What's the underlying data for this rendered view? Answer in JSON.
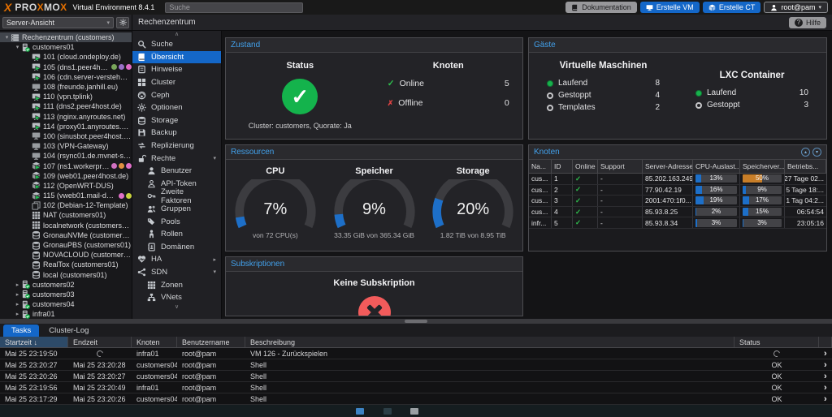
{
  "topbar": {
    "brand_pre": "PRO",
    "brand_mid": "MO",
    "brand_x": "X",
    "subtitle": "Virtual Environment 8.4.1",
    "search_placeholder": "Suche",
    "documentation": "Dokumentation",
    "create_vm": "Erstelle VM",
    "create_ct": "Erstelle CT",
    "user": "root@pam"
  },
  "viewbar": {
    "view_select": "Server-Ansicht",
    "breadcrumb": "Rechenzentrum",
    "help": "Hilfe"
  },
  "tree": {
    "items": [
      {
        "label": "Rechenzentrum (customers)",
        "icon": "datacenter",
        "level": 0,
        "caret": "down",
        "selected": true
      },
      {
        "label": "customers01",
        "icon": "node",
        "level": 1,
        "caret": "down"
      },
      {
        "label": "101 (cloud.ondeploy.de)",
        "icon": "vm-running",
        "level": 2
      },
      {
        "label": "105 (dns1.peer4host.de)",
        "icon": "vm-running",
        "level": 2,
        "tags": [
          "#79a65b",
          "#9a70c8",
          "#e06cc8"
        ]
      },
      {
        "label": "106 (cdn.server-verstehen.de)",
        "icon": "vm-running",
        "level": 2
      },
      {
        "label": "108 (freunde.janhill.eu)",
        "icon": "vm-stopped",
        "level": 2
      },
      {
        "label": "110 (vpn.tplink)",
        "icon": "vm-running",
        "level": 2
      },
      {
        "label": "111 (dns2.peer4host.de)",
        "icon": "vm-running",
        "level": 2
      },
      {
        "label": "113 (nginx.anyroutes.net)",
        "icon": "vm-running",
        "level": 2
      },
      {
        "label": "114 (proxy01.anyroutes.net)",
        "icon": "vm-running",
        "level": 2
      },
      {
        "label": "100 (sinusbot.peer4host.de)",
        "icon": "vm-stopped",
        "level": 2
      },
      {
        "label": "103 (VPN-Gateway)",
        "icon": "vm-stopped",
        "level": 2
      },
      {
        "label": "104 (rsync01.de.mvnet-sol.de)",
        "icon": "vm-stopped",
        "level": 2
      },
      {
        "label": "107 (ns1.workerproxy.net)",
        "icon": "ct-running",
        "level": 2,
        "tags": [
          "#d070c0",
          "#e09040",
          "#e070c8"
        ]
      },
      {
        "label": "109 (web01.peer4host.de)",
        "icon": "ct-running",
        "level": 2
      },
      {
        "label": "112 (OpenWRT-DUS)",
        "icon": "ct-running",
        "level": 2
      },
      {
        "label": "115 (vweb01.mail-deutschland.net)",
        "icon": "ct-running",
        "level": 2,
        "tags": [
          "#e070c8",
          "#c8d23e"
        ]
      },
      {
        "label": "102 (Debian-12-Template)",
        "icon": "template",
        "level": 2
      },
      {
        "label": "NAT (customers01)",
        "icon": "sdn",
        "level": 2
      },
      {
        "label": "localnetwork (customers01)",
        "icon": "sdn",
        "level": 2
      },
      {
        "label": "GronauNVMe (customers01)",
        "icon": "storage",
        "level": 2
      },
      {
        "label": "GronauPBS (customers01)",
        "icon": "storage",
        "level": 2
      },
      {
        "label": "NOVACLOUD (customers01)",
        "icon": "storage",
        "level": 2
      },
      {
        "label": "RealTox (customers01)",
        "icon": "storage",
        "level": 2
      },
      {
        "label": "local (customers01)",
        "icon": "storage",
        "level": 2
      },
      {
        "label": "customers02",
        "icon": "node",
        "level": 1,
        "caret": "right"
      },
      {
        "label": "customers03",
        "icon": "node",
        "level": 1,
        "caret": "right"
      },
      {
        "label": "customers04",
        "icon": "node",
        "level": 1,
        "caret": "right"
      },
      {
        "label": "infra01",
        "icon": "node",
        "level": 1,
        "caret": "right"
      }
    ]
  },
  "nav": {
    "items": [
      {
        "label": "Suche",
        "icon": "magnifier"
      },
      {
        "label": "Übersicht",
        "icon": "book",
        "selected": true
      },
      {
        "label": "Hinweise",
        "icon": "note"
      },
      {
        "label": "Cluster",
        "icon": "cluster"
      },
      {
        "label": "Ceph",
        "icon": "ceph"
      },
      {
        "label": "Optionen",
        "icon": "gear"
      },
      {
        "label": "Storage",
        "icon": "database"
      },
      {
        "label": "Backup",
        "icon": "floppy"
      },
      {
        "label": "Replizierung",
        "icon": "sync"
      },
      {
        "label": "Rechte",
        "icon": "unlock",
        "caret": "down"
      },
      {
        "label": "Benutzer",
        "icon": "user",
        "indent": true
      },
      {
        "label": "API-Token",
        "icon": "user-outline",
        "indent": true
      },
      {
        "label": "Zweite Faktoren",
        "icon": "key",
        "indent": true
      },
      {
        "label": "Gruppen",
        "icon": "users",
        "indent": true
      },
      {
        "label": "Pools",
        "icon": "tags",
        "indent": true
      },
      {
        "label": "Rollen",
        "icon": "person",
        "indent": true
      },
      {
        "label": "Domänen",
        "icon": "address-book",
        "indent": true
      },
      {
        "label": "HA",
        "icon": "heartbeat",
        "caret": "right"
      },
      {
        "label": "SDN",
        "icon": "share-nodes",
        "caret": "down"
      },
      {
        "label": "Zonen",
        "icon": "grid",
        "indent": true
      },
      {
        "label": "VNets",
        "icon": "vnet",
        "indent": true
      }
    ]
  },
  "panels": {
    "zustand": {
      "title": "Zustand",
      "status_label": "Status",
      "cluster_info": "Cluster: customers, Quorate: Ja",
      "nodes_label": "Knoten",
      "online_label": "Online",
      "online_value": "5",
      "offline_label": "Offline",
      "offline_value": "0"
    },
    "gaeste": {
      "title": "Gäste",
      "vm_title": "Virtuelle Maschinen",
      "vm_rows": [
        {
          "icon": "running",
          "label": "Laufend",
          "value": "8"
        },
        {
          "icon": "stopped",
          "label": "Gestoppt",
          "value": "4"
        },
        {
          "icon": "template",
          "label": "Templates",
          "value": "2"
        }
      ],
      "lxc_title": "LXC Container",
      "lxc_rows": [
        {
          "icon": "running",
          "label": "Laufend",
          "value": "10"
        },
        {
          "icon": "stopped",
          "label": "Gestoppt",
          "value": "3"
        }
      ]
    },
    "ressourcen": {
      "title": "Ressourcen",
      "gauges": [
        {
          "label": "CPU",
          "percent": 7,
          "display": "7%",
          "sub": "von 72 CPU(s)"
        },
        {
          "label": "Speicher",
          "percent": 9,
          "display": "9%",
          "sub": "33.35 GiB von 365.34 GiB"
        },
        {
          "label": "Storage",
          "percent": 20,
          "display": "20%",
          "sub": "1.82 TiB von 8.95 TiB"
        }
      ],
      "accent_color": "#1d6fc8"
    },
    "knoten": {
      "title": "Knoten",
      "columns": [
        "Na...",
        "ID",
        "Online",
        "Support",
        "Server-Adresse",
        "CPU-Auslast...",
        "Speicherver...",
        "Betriebs..."
      ],
      "rows": [
        {
          "name": "cus...",
          "id": "1",
          "online": true,
          "support": "-",
          "address": "85.202.163.249",
          "cpu": 13,
          "cpu_display": "13%",
          "mem": 50,
          "mem_display": "50%",
          "mem_warn": true,
          "uptime": "27 Tage 02..."
        },
        {
          "name": "cus...",
          "id": "2",
          "online": true,
          "support": "-",
          "address": "77.90.42.19",
          "cpu": 16,
          "cpu_display": "16%",
          "mem": 9,
          "mem_display": "9%",
          "uptime": "5 Tage 18:..."
        },
        {
          "name": "cus...",
          "id": "3",
          "online": true,
          "support": "-",
          "address": "2001:470:1f0...",
          "cpu": 19,
          "cpu_display": "19%",
          "mem": 17,
          "mem_display": "17%",
          "uptime": "1 Tag 04:2..."
        },
        {
          "name": "cus...",
          "id": "4",
          "online": true,
          "support": "-",
          "address": "85.93.8.25",
          "cpu": 2,
          "cpu_display": "2%",
          "mem": 15,
          "mem_display": "15%",
          "uptime": "06:54:54"
        },
        {
          "name": "infr...",
          "id": "5",
          "online": true,
          "support": "-",
          "address": "85.93.8.34",
          "cpu": 3,
          "cpu_display": "3%",
          "mem": 3,
          "mem_display": "3%",
          "uptime": "23:05:16"
        }
      ]
    },
    "subskriptionen": {
      "title": "Subskriptionen",
      "message": "Keine Subskription"
    }
  },
  "tasks": {
    "tab_tasks": "Tasks",
    "tab_cluster_log": "Cluster-Log",
    "columns": [
      "Startzeit",
      "Endzeit",
      "Knoten",
      "Benutzername",
      "Beschreibung",
      "Status"
    ],
    "sort_column": "Startzeit",
    "rows": [
      {
        "start": "Mai 25 23:19:50",
        "end": "",
        "node": "infra01",
        "user": "root@pam",
        "desc": "VM 126 - Zurückspielen",
        "status": "",
        "running": true
      },
      {
        "start": "Mai 25 23:20:27",
        "end": "Mai 25 23:20:28",
        "node": "customers04",
        "user": "root@pam",
        "desc": "Shell",
        "status": "OK"
      },
      {
        "start": "Mai 25 23:20:26",
        "end": "Mai 25 23:20:27",
        "node": "customers04",
        "user": "root@pam",
        "desc": "Shell",
        "status": "OK"
      },
      {
        "start": "Mai 25 23:19:56",
        "end": "Mai 25 23:20:49",
        "node": "infra01",
        "user": "root@pam",
        "desc": "Shell",
        "status": "OK"
      },
      {
        "start": "Mai 25 23:17:29",
        "end": "Mai 25 23:20:26",
        "node": "customers04",
        "user": "root@pam",
        "desc": "Shell",
        "status": "OK"
      }
    ]
  },
  "colors": {
    "accent_blue": "#1467c8",
    "title_blue": "#42a0ea",
    "ok_green": "#14b34c",
    "error_red": "#f25b5b",
    "warn_orange": "#c87e28",
    "logo_orange": "#e57000"
  }
}
